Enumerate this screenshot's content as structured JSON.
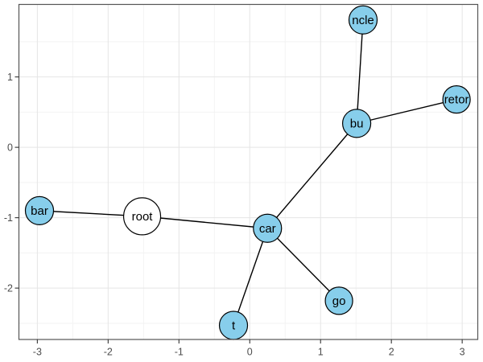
{
  "chart_data": {
    "type": "scatter",
    "subtype": "node-link-network-graph",
    "title": "",
    "xlabel": "",
    "ylabel": "",
    "xlim": [
      -3.26,
      3.22
    ],
    "ylim": [
      -2.73,
      2.03
    ],
    "grid": "major-and-minor",
    "legend_position": "none",
    "x_axis": {
      "tick_values": [
        -3,
        -2,
        -1,
        0,
        1,
        2,
        3
      ],
      "tick_labels": [
        "-3",
        "-2",
        "-1",
        "0",
        "1",
        "2",
        "3"
      ],
      "minor_breaks": [
        -2.5,
        -1.5,
        -0.5,
        0.5,
        1.5,
        2.5
      ]
    },
    "y_axis": {
      "tick_values": [
        1,
        0,
        -1,
        -2
      ],
      "tick_labels": [
        "1",
        "0",
        "-1",
        "-2"
      ],
      "minor_breaks": [
        1.5,
        0.5,
        -0.5,
        -1.5,
        -2.5
      ]
    },
    "nodes": [
      {
        "id": "root",
        "label": "root",
        "x": -1.52,
        "y": -0.98,
        "fill": "#FFFFFF",
        "radius_px": 23
      },
      {
        "id": "bar",
        "label": "bar",
        "x": -2.97,
        "y": -0.9,
        "fill": "#87CEEB",
        "radius_px": 17.5
      },
      {
        "id": "car",
        "label": "car",
        "x": 0.25,
        "y": -1.15,
        "fill": "#87CEEB",
        "radius_px": 17.5
      },
      {
        "id": "bu",
        "label": "bu",
        "x": 1.51,
        "y": 0.34,
        "fill": "#87CEEB",
        "radius_px": 17.5
      },
      {
        "id": "ncle",
        "label": "ncle",
        "x": 1.6,
        "y": 1.81,
        "fill": "#87CEEB",
        "radius_px": 17.5
      },
      {
        "id": "retor",
        "label": "retor",
        "x": 2.92,
        "y": 0.68,
        "fill": "#87CEEB",
        "radius_px": 17
      },
      {
        "id": "go",
        "label": "go",
        "x": 1.26,
        "y": -2.18,
        "fill": "#87CEEB",
        "radius_px": 17
      },
      {
        "id": "t",
        "label": "t",
        "x": -0.23,
        "y": -2.53,
        "fill": "#87CEEB",
        "radius_px": 17.5
      }
    ],
    "edges": [
      {
        "from": "bar",
        "to": "root"
      },
      {
        "from": "root",
        "to": "car"
      },
      {
        "from": "car",
        "to": "bu"
      },
      {
        "from": "bu",
        "to": "ncle"
      },
      {
        "from": "bu",
        "to": "retor"
      },
      {
        "from": "car",
        "to": "go"
      },
      {
        "from": "car",
        "to": "t"
      }
    ],
    "style": {
      "node_border_color": "#000000",
      "node_label_color": "#000000",
      "edge_color": "#000000",
      "axis_text_color": "#4D4D4D",
      "tick_color": "#333333",
      "panel_border_color": "#555555",
      "grid_major_color": "#E5E5E5",
      "grid_minor_color": "#F2F2F2",
      "background_color": "#FFFFFF"
    }
  }
}
